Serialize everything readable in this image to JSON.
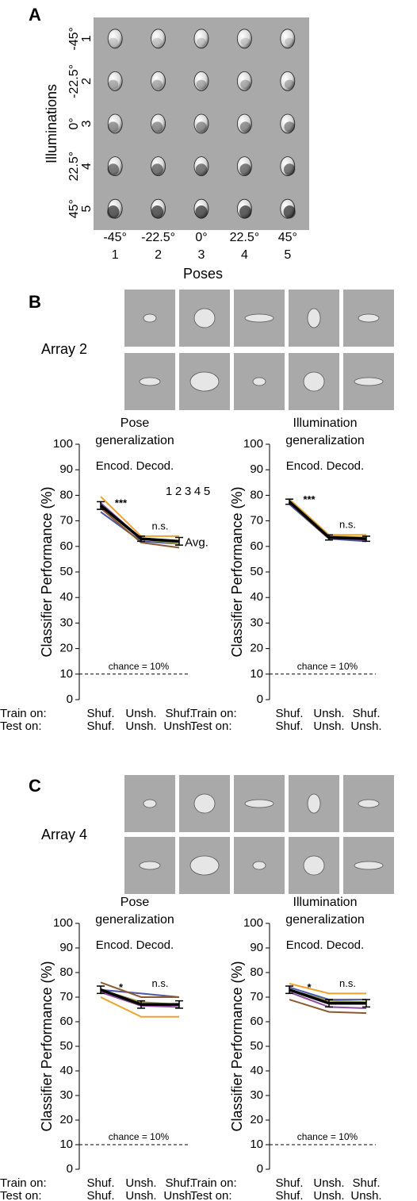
{
  "panel_a": {
    "label": "A",
    "y_title": "Illuminations",
    "x_title": "Poses",
    "illuminations": [
      "-45°",
      "-22.5°",
      "0°",
      "22.5°",
      "45°"
    ],
    "poses": [
      "-45°",
      "-22.5°",
      "0°",
      "22.5°",
      "45°"
    ],
    "indices": [
      "1",
      "2",
      "3",
      "4",
      "5"
    ],
    "index_colors": [
      "#4b5aa6",
      "#8c5a2e",
      "#f0a22e",
      "#9b9a3f",
      "#8d4f9e"
    ]
  },
  "panel_b": {
    "label": "B",
    "array": "Array 2"
  },
  "panel_c": {
    "label": "C",
    "array": "Array 4"
  },
  "chart_data": [
    {
      "type": "line",
      "title": [
        "Pose",
        "generalization"
      ],
      "subtitle": "Encod. Decod.",
      "ylabel": "Classifier Performance (%)",
      "row_labels": [
        "Train on:",
        "Test on:"
      ],
      "categories": [
        "Shuf.",
        "Unsh.",
        "Shuf."
      ],
      "test_categories": [
        "Shuf.",
        "Unsh.",
        "Unsh."
      ],
      "ylim": [
        0,
        100
      ],
      "yticks": [
        0,
        10,
        20,
        30,
        40,
        50,
        60,
        70,
        80,
        90,
        100
      ],
      "chance": {
        "value": 10,
        "label": "chance = 10%"
      },
      "annotations": [
        "***",
        "n.s."
      ],
      "legend": true,
      "series": [
        {
          "name": "1",
          "color": "#4b5aa6",
          "values": [
            73.5,
            62,
            61
          ]
        },
        {
          "name": "2",
          "color": "#8c5a2e",
          "values": [
            75,
            61.5,
            59.5
          ]
        },
        {
          "name": "3",
          "color": "#f0a22e",
          "values": [
            79.5,
            64,
            64
          ]
        },
        {
          "name": "4",
          "color": "#9b9a3f",
          "values": [
            76,
            63,
            61
          ]
        },
        {
          "name": "5",
          "color": "#8d4f9e",
          "values": [
            77,
            63,
            62
          ]
        },
        {
          "name": "Avg.",
          "color": "#000000",
          "values": [
            76,
            63,
            62
          ],
          "errors": [
            1.5,
            1,
            1.5
          ]
        }
      ]
    },
    {
      "type": "line",
      "title": [
        "Illumination",
        "generalization"
      ],
      "subtitle": "Encod. Decod.",
      "ylabel": "Classifier Performance (%)",
      "row_labels": [
        "Train on:",
        "Test on:"
      ],
      "categories": [
        "Shuf.",
        "Unsh.",
        "Shuf."
      ],
      "test_categories": [
        "Shuf.",
        "Unsh.",
        "Unsh."
      ],
      "ylim": [
        0,
        100
      ],
      "yticks": [
        0,
        10,
        20,
        30,
        40,
        50,
        60,
        70,
        80,
        90,
        100
      ],
      "chance": {
        "value": 10,
        "label": "chance = 10%"
      },
      "annotations": [
        "***",
        "n.s."
      ],
      "series": [
        {
          "color": "#4b5aa6",
          "values": [
            76.5,
            63,
            62
          ]
        },
        {
          "color": "#8c5a2e",
          "values": [
            77,
            63,
            63
          ]
        },
        {
          "color": "#f0a22e",
          "values": [
            78.5,
            64.5,
            64.5
          ]
        },
        {
          "color": "#9b9a3f",
          "values": [
            78,
            64,
            63.5
          ]
        },
        {
          "color": "#8d4f9e",
          "values": [
            77,
            63.5,
            62.5
          ]
        },
        {
          "color": "#000000",
          "values": [
            77.5,
            63.5,
            63
          ],
          "errors": [
            1,
            1,
            1
          ]
        }
      ]
    },
    {
      "type": "line",
      "title": [
        "Pose",
        "generalization"
      ],
      "subtitle": "Encod. Decod.",
      "ylabel": "Classifier Performance (%)",
      "row_labels": [
        "Train on:",
        "Test on:"
      ],
      "categories": [
        "Shuf.",
        "Unsh.",
        "Shuf."
      ],
      "test_categories": [
        "Shuf.",
        "Unsh.",
        "Unsh."
      ],
      "ylim": [
        0,
        100
      ],
      "yticks": [
        0,
        10,
        20,
        30,
        40,
        50,
        60,
        70,
        80,
        90,
        100
      ],
      "chance": {
        "value": 10,
        "label": "chance = 10%"
      },
      "annotations": [
        "*",
        "n.s."
      ],
      "series": [
        {
          "color": "#4b5aa6",
          "values": [
            73,
            71.5,
            70
          ]
        },
        {
          "color": "#8c5a2e",
          "values": [
            76,
            70,
            70
          ]
        },
        {
          "color": "#f0a22e",
          "values": [
            70,
            62,
            62
          ]
        },
        {
          "color": "#9b9a3f",
          "values": [
            73,
            68,
            67
          ]
        },
        {
          "color": "#8d4f9e",
          "values": [
            72,
            66.5,
            66
          ]
        },
        {
          "color": "#000000",
          "values": [
            73,
            67,
            67
          ],
          "errors": [
            1.5,
            1.5,
            1.5
          ]
        }
      ]
    },
    {
      "type": "line",
      "title": [
        "Illumination",
        "generalization"
      ],
      "subtitle": "Encod. Decod.",
      "ylabel": "Classifier Performance (%)",
      "row_labels": [
        "Train on:",
        "Test on:"
      ],
      "categories": [
        "Shuf.",
        "Unsh.",
        "Shuf."
      ],
      "test_categories": [
        "Shuf.",
        "Unsh.",
        "Unsh."
      ],
      "ylim": [
        0,
        100
      ],
      "yticks": [
        0,
        10,
        20,
        30,
        40,
        50,
        60,
        70,
        80,
        90,
        100
      ],
      "chance": {
        "value": 10,
        "label": "chance = 10%"
      },
      "annotations": [
        "*",
        "n.s."
      ],
      "series": [
        {
          "color": "#4b5aa6",
          "values": [
            74,
            69,
            69
          ]
        },
        {
          "color": "#8c5a2e",
          "values": [
            69,
            64,
            63.5
          ]
        },
        {
          "color": "#f0a22e",
          "values": [
            75.5,
            71.5,
            71.5
          ]
        },
        {
          "color": "#9b9a3f",
          "values": [
            73,
            68.5,
            68
          ]
        },
        {
          "color": "#8d4f9e",
          "values": [
            72,
            66,
            65.5
          ]
        },
        {
          "color": "#000000",
          "values": [
            73,
            67.5,
            67.5
          ],
          "errors": [
            1.5,
            1.5,
            1.5
          ]
        }
      ]
    }
  ]
}
